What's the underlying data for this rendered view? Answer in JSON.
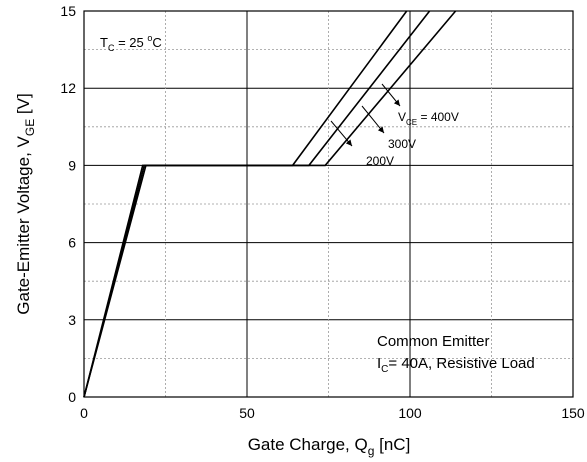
{
  "chart_data": {
    "type": "line",
    "xlabel": "Gate Charge, Q",
    "xlabel_sub": "g",
    "xlabel_unit": " [nC]",
    "ylabel": "Gate-Emitter Voltage, V",
    "ylabel_sub": "GE",
    "ylabel_unit": " [V]",
    "xlim": [
      0,
      150
    ],
    "ylim": [
      0,
      15
    ],
    "xticks": [
      0,
      50,
      100,
      150
    ],
    "yticks": [
      0,
      3,
      6,
      9,
      12,
      15
    ],
    "xticks_minor": [
      25,
      75,
      125
    ],
    "yticks_minor": [
      1.5,
      4.5,
      7.5,
      10.5,
      13.5
    ],
    "grid": true,
    "series": [
      {
        "name": "200V",
        "x": [
          0,
          19,
          74,
          114
        ],
        "y": [
          0,
          9,
          9,
          15
        ]
      },
      {
        "name": "300V",
        "x": [
          0,
          18.5,
          69,
          106
        ],
        "y": [
          0,
          9,
          9,
          15
        ]
      },
      {
        "name": "400V",
        "x": [
          0,
          18,
          64,
          99
        ],
        "y": [
          0,
          9,
          9,
          15
        ]
      }
    ],
    "annotations": {
      "temp": {
        "main": "T",
        "sub": "C",
        "rest": " = 25 ",
        "sup": "o",
        "tail": "C"
      },
      "vce": {
        "main": "V",
        "sub": "CE",
        "rest": " = 400V"
      },
      "label300": "300V",
      "label200": "200V",
      "condition1": "Common Emitter",
      "condition2": {
        "main": "I",
        "sub": "C",
        "rest": "= 40A, Resistive Load"
      }
    }
  }
}
